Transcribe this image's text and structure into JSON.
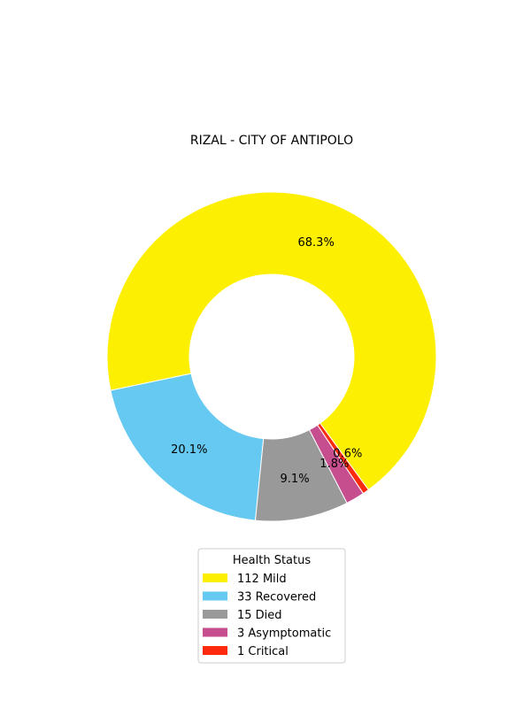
{
  "chart_data": {
    "type": "pie",
    "donut": true,
    "title": "RIZAL - CITY OF ANTIPOLO",
    "legend_title": "Health Status",
    "legend_position": "bottom-center",
    "slices": [
      {
        "label": "Mild",
        "count": 112,
        "percent_label": "68.3%",
        "color": "#fdef00"
      },
      {
        "label": "Recovered",
        "count": 33,
        "percent_label": "20.1%",
        "color": "#66c9f1"
      },
      {
        "label": "Died",
        "count": 15,
        "percent_label": "9.1%",
        "color": "#999999"
      },
      {
        "label": "Asymptomatic",
        "count": 3,
        "percent_label": "1.8%",
        "color": "#c64e8f"
      },
      {
        "label": "Critical",
        "count": 1,
        "percent_label": "0.6%",
        "color": "#fe2a0e"
      }
    ]
  }
}
